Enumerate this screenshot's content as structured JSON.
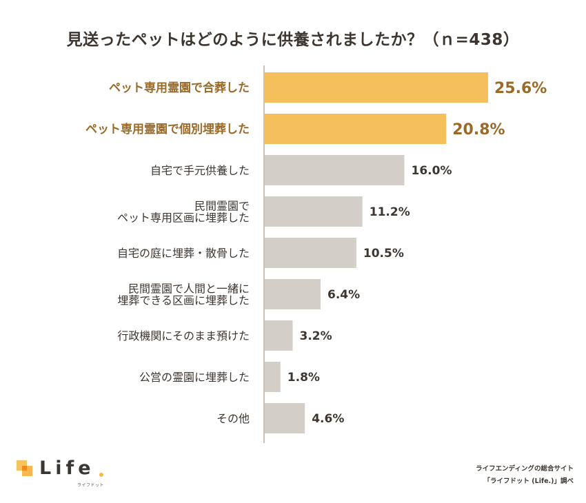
{
  "chart_data": {
    "type": "bar",
    "orientation": "horizontal",
    "title": "見送ったペットはどのように供養されましたか？（ｎ=438）",
    "xlabel": "",
    "ylabel": "",
    "unit": "%",
    "xlim": [
      0,
      25.6
    ],
    "grid": false,
    "categories": [
      [
        "ペット専用霊園で合葬した"
      ],
      [
        "ペット専用霊園で個別埋葬した"
      ],
      [
        "自宅で手元供養した"
      ],
      [
        "民間霊園で",
        "ペット専用区画に埋葬した"
      ],
      [
        "自宅の庭に埋葬・散骨した"
      ],
      [
        "民間霊園で人間と一緒に",
        "埋葬できる区画に埋葬した"
      ],
      [
        "行政機関にそのまま預けた"
      ],
      [
        "公営の霊園に埋葬した"
      ],
      [
        "その他"
      ]
    ],
    "values": [
      25.6,
      20.8,
      16.0,
      11.2,
      10.5,
      6.4,
      3.2,
      1.8,
      4.6
    ],
    "value_labels": [
      "25.6%",
      "20.8%",
      "16.0%",
      "11.2%",
      "10.5%",
      "6.4%",
      "3.2%",
      "1.8%",
      "4.6%"
    ],
    "highlighted": [
      true,
      true,
      false,
      false,
      false,
      false,
      false,
      false,
      false
    ],
    "colors": {
      "highlight_bar": "#f5c05c",
      "highlight_text": "#9a6a28",
      "normal_bar": "#d4cec8",
      "normal_text": "#3d3630",
      "axis": "#c9c2bb"
    }
  },
  "footer": {
    "source_line1": "ライフエンディングの総合サイト",
    "source_line2": "「ライフドット (Life.)」調べ",
    "logo_text": "Life",
    "logo_sub": "ライフドット"
  }
}
